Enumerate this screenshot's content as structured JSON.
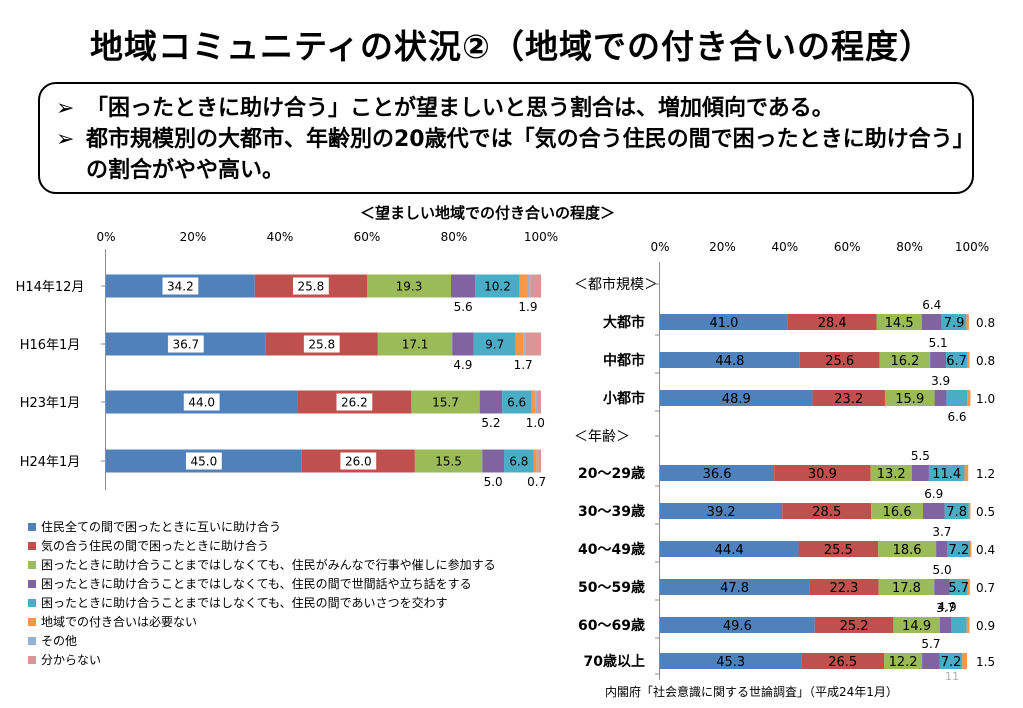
{
  "title": "地域コミュニティの状況②（地域での付き合いの程度）",
  "summary": {
    "bullets": [
      "「困ったときに助け合う」ことが望ましいと思う割合は、増加傾向である。",
      "都市規模別の大都市、年齢別の20歳代では「気の合う住民の間で困ったときに助け合う」の割合がやや高い。"
    ],
    "bullet_symbol": "➢"
  },
  "colors": {
    "series": [
      "#4f81bd",
      "#c0504d",
      "#9bbb59",
      "#8064a2",
      "#4bacc6",
      "#f79646",
      "#95b3d7",
      "#d99694"
    ]
  },
  "chart_data": [
    {
      "type": "bar",
      "orientation": "horizontal-stacked-100",
      "title": "＜望ましい地域での付き合いの程度＞",
      "x_ticks": [
        "0%",
        "20%",
        "40%",
        "60%",
        "80%",
        "100%"
      ],
      "xlim": [
        0,
        100
      ],
      "categories": [
        "H14年12月",
        "H16年1月",
        "H23年1月",
        "H24年1月"
      ],
      "series": [
        {
          "name": "住民全ての間で困ったときに互いに助け合う",
          "values": [
            34.2,
            36.7,
            44.0,
            45.0
          ]
        },
        {
          "name": "気の合う住民の間で困ったときに助け合う",
          "values": [
            25.8,
            25.8,
            26.2,
            26.0
          ]
        },
        {
          "name": "困ったときに助け合うことまではしなくても、住民がみんなで行事や催しに参加する",
          "values": [
            19.3,
            17.1,
            15.7,
            15.5
          ]
        },
        {
          "name": "困ったときに助け合うことまではしなくても、住民の間で世間話や立ち話をする",
          "values": [
            5.6,
            4.9,
            5.2,
            5.0
          ]
        },
        {
          "name": "困ったときに助け合うことまではしなくても、住民の間であいさつを交わす",
          "values": [
            10.2,
            9.7,
            6.6,
            6.8
          ]
        },
        {
          "name": "地域での付き合いは必要ない",
          "values": [
            1.9,
            1.7,
            1.0,
            0.7
          ]
        },
        {
          "name": "その他",
          "values": [
            0.5,
            0.5,
            0.5,
            0.4
          ]
        },
        {
          "name": "分からない",
          "values": [
            2.5,
            3.6,
            0.8,
            0.6
          ]
        }
      ],
      "data_labels": [
        {
          "inside": [
            "34.2",
            "25.8",
            "19.3",
            "",
            "10.2"
          ],
          "below": [
            "5.6",
            "1.9"
          ]
        },
        {
          "inside": [
            "36.7",
            "25.8",
            "17.1",
            "",
            "9.7"
          ],
          "below": [
            "4.9",
            "1.7"
          ]
        },
        {
          "inside": [
            "44.0",
            "26.2",
            "15.7",
            "",
            "6.6"
          ],
          "below": [
            "5.2",
            "1.0"
          ]
        },
        {
          "inside": [
            "45.0",
            "26.0",
            "15.5",
            "",
            "6.8"
          ],
          "below": [
            "5.0",
            "0.7"
          ]
        }
      ],
      "legend": "bottom-left"
    },
    {
      "type": "bar",
      "orientation": "horizontal-stacked-100",
      "x_ticks": [
        "0%",
        "20%",
        "40%",
        "60%",
        "80%",
        "100%"
      ],
      "xlim": [
        0,
        100
      ],
      "group_headers": [
        "＜都市規模＞",
        "＜年齢＞"
      ],
      "categories": [
        "大都市",
        "中都市",
        "小都市",
        "20～29歳",
        "30～39歳",
        "40～49歳",
        "50～59歳",
        "60～69歳",
        "70歳以上"
      ],
      "series": [
        {
          "values": [
            41.0,
            44.8,
            48.9,
            36.6,
            39.2,
            44.4,
            47.8,
            49.6,
            45.3
          ]
        },
        {
          "values": [
            28.4,
            25.6,
            23.2,
            30.9,
            28.5,
            25.5,
            22.3,
            25.2,
            26.5
          ]
        },
        {
          "values": [
            14.5,
            16.2,
            15.9,
            13.2,
            16.6,
            18.6,
            17.8,
            14.9,
            12.2
          ]
        },
        {
          "values": [
            6.4,
            5.1,
            3.9,
            5.5,
            6.9,
            3.7,
            5.0,
            3.7,
            5.7
          ]
        },
        {
          "values": [
            7.9,
            6.7,
            6.6,
            11.4,
            7.8,
            7.2,
            5.7,
            4.9,
            7.2
          ]
        },
        {
          "values": [
            0.8,
            0.8,
            1.0,
            1.2,
            0.5,
            0.4,
            0.7,
            0.9,
            1.5
          ]
        }
      ],
      "data_labels": [
        {
          "inside": [
            "41.0",
            "28.4",
            "14.5",
            "",
            "7.9"
          ],
          "above": "6.4",
          "right": "0.8"
        },
        {
          "inside": [
            "44.8",
            "25.6",
            "16.2",
            "",
            "6.7"
          ],
          "above": "5.1",
          "right": "0.8"
        },
        {
          "inside": [
            "48.9",
            "23.2",
            "15.9",
            "",
            ""
          ],
          "above": "3.9",
          "below": "6.6",
          "right": "1.0"
        },
        {
          "inside": [
            "36.6",
            "30.9",
            "13.2",
            "",
            "11.4"
          ],
          "above": "5.5",
          "right": "1.2"
        },
        {
          "inside": [
            "39.2",
            "28.5",
            "16.6",
            "",
            "7.8"
          ],
          "above": "6.9",
          "right": "0.5"
        },
        {
          "inside": [
            "44.4",
            "25.5",
            "18.6",
            "",
            "7.2"
          ],
          "above": "3.7",
          "right": "0.4"
        },
        {
          "inside": [
            "47.8",
            "22.3",
            "17.8",
            "",
            "5.7"
          ],
          "above": "5.0",
          "right": "0.7"
        },
        {
          "inside": [
            "49.6",
            "25.2",
            "14.9",
            "",
            ""
          ],
          "above": "3.7",
          "below_right": "4.9",
          "right": "0.9"
        },
        {
          "inside": [
            "45.3",
            "26.5",
            "12.2",
            "",
            "7.2"
          ],
          "above": "5.7",
          "right": "1.5"
        }
      ]
    }
  ],
  "source": "内閣府「社会意識に関する世論調査」（平成24年1月）",
  "page_number": "11"
}
